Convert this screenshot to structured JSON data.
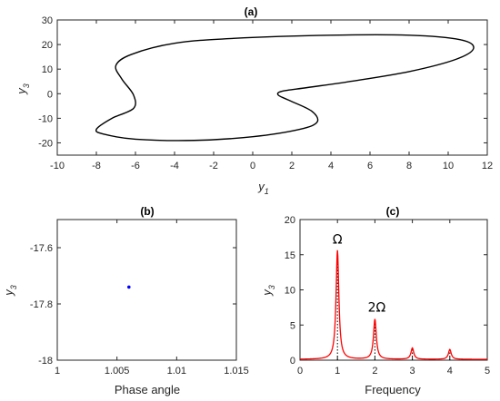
{
  "chart_data": [
    {
      "type": "line",
      "title": "(a)",
      "xlabel": "y",
      "xlabel_sub": "1",
      "ylabel": "y",
      "ylabel_sub": "3",
      "xlim": [
        -10,
        12
      ],
      "ylim": [
        -25,
        30
      ],
      "xticks": [
        "-10",
        "-8",
        "-6",
        "-4",
        "-2",
        "0",
        "2",
        "4",
        "6",
        "8",
        "10",
        "12"
      ],
      "yticks": [
        "-20",
        "-10",
        "0",
        "10",
        "20",
        "30"
      ],
      "grid": false,
      "line_color": "#000000",
      "series": [
        {
          "closed": true,
          "x": [
            -1.0,
            4.0,
            8.0,
            10.6,
            11.3,
            10.4,
            8.0,
            5.0,
            2.8,
            1.5,
            1.3,
            1.8,
            3.0,
            3.3,
            2.4,
            0.0,
            -3.0,
            -6.0,
            -7.6,
            -8.0,
            -7.2,
            -6.1,
            -6.1,
            -6.7,
            -7.0,
            -6.2,
            -4.0
          ],
          "y": [
            22.5,
            23.8,
            23.8,
            22.0,
            18.5,
            14.0,
            9.0,
            5.0,
            2.5,
            1.0,
            -0.5,
            -2.5,
            -7.0,
            -11.5,
            -14.5,
            -17.5,
            -19.0,
            -18.5,
            -16.5,
            -14.5,
            -10.0,
            -6.0,
            -0.5,
            6.0,
            11.5,
            16.0,
            20.5
          ]
        }
      ]
    },
    {
      "type": "scatter",
      "title": "(b)",
      "xlabel": "Phase angle",
      "ylabel": "y",
      "ylabel_sub": "3",
      "xlim": [
        1.0,
        1.015
      ],
      "ylim": [
        -18.0,
        -17.5
      ],
      "xticks": [
        "1",
        "1.005",
        "1.01",
        "1.015"
      ],
      "yticks": [
        "-18",
        "-17.8",
        "-17.6"
      ],
      "grid": false,
      "marker_color": "#0000ff",
      "series": [
        {
          "x": [
            1.006
          ],
          "y": [
            -17.74
          ]
        }
      ]
    },
    {
      "type": "line",
      "title": "(c)",
      "xlabel": "Frequency",
      "ylabel": "y",
      "ylabel_sub": "3",
      "xlim": [
        0,
        5
      ],
      "ylim": [
        0,
        20
      ],
      "xticks": [
        "0",
        "1",
        "2",
        "3",
        "4",
        "5"
      ],
      "yticks": [
        "0",
        "5",
        "10",
        "15",
        "20"
      ],
      "grid": false,
      "line_color": "#ff0000",
      "dotted_reference_color": "#000000",
      "peaks": [
        {
          "x": 1,
          "y": 15.5
        },
        {
          "x": 2,
          "y": 5.7
        },
        {
          "x": 3,
          "y": 1.6
        },
        {
          "x": 4,
          "y": 1.4
        }
      ],
      "annotations": [
        {
          "text": "Ω",
          "x": 1.0,
          "y": 16.6
        },
        {
          "text": "2Ω",
          "x": 2.05,
          "y": 6.9
        }
      ]
    }
  ]
}
